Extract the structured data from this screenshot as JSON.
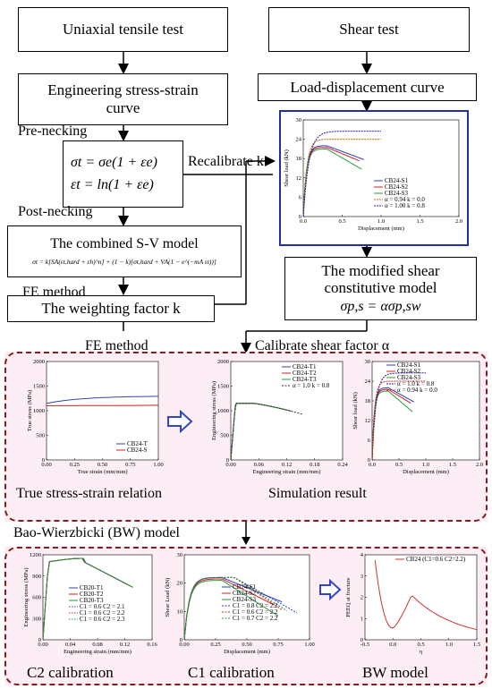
{
  "boxes": {
    "uniaxial": "Uniaxial tensile test",
    "shear": "Shear test",
    "eng_curve_1": "Engineering stress-strain",
    "eng_curve_2": "curve",
    "load_disp": "Load-displacement curve",
    "combined_model": "The combined S-V model",
    "weighting": "The weighting factor k",
    "mod_shear_1": "The modified shear",
    "mod_shear_2": "constitutive model"
  },
  "labels": {
    "pre_necking": "Pre-necking",
    "post_necking": "Post-necking",
    "fe_method_1": "FE method",
    "fe_method_2": "FE method",
    "recalibrate": "Recalibrate k",
    "calibrate_alpha": "Calibrate shear factor α",
    "true_ss": "True stress-strain relation",
    "sim_result": "Simulation result",
    "bw_model_title": "Bao-Wierzbicki (BW) model",
    "c2_calib": "C2 calibration",
    "c1_calib": "C1 calibration",
    "bw_model": "BW model"
  },
  "equations": {
    "sigma_t": "σt = σe(1 + εe)",
    "eps_t": "εt = ln(1 + εe)",
    "sv_model": "σt = k[SA(εt,hard + εh)^n] + (1 − k)[σt,hard + VA(1 − e^(−mA εt))]",
    "shear_model": "σp,s = ασp,sw"
  },
  "charts": {
    "shear_top": {
      "xlabel": "Displacement (mm)",
      "ylabel": "Shear load (kN)",
      "xticks": [
        "0.0",
        "0.5",
        "1.0",
        "1.5",
        "2.0"
      ],
      "yticks": [
        "0",
        "6",
        "12",
        "18",
        "24",
        "30"
      ],
      "legend": [
        "CB24-S1",
        "CB24-S2",
        "CB24-S3",
        "α = 0.94  k = 0.0",
        "α = 1.00  k = 0.8"
      ]
    },
    "true_ss": {
      "xlabel": "True strain (mm/mm)",
      "ylabel": "True stress (MPa)",
      "xticks": [
        "0.00",
        "0.25",
        "0.50",
        "0.75",
        "1.00"
      ],
      "yticks": [
        "0",
        "500",
        "1000",
        "1500",
        "2000"
      ],
      "legend": [
        "CB24-T",
        "CB24-S"
      ]
    },
    "sim_eng": {
      "xlabel": "Engineering strain (mm/mm)",
      "ylabel": "Engineering stress (MPa)",
      "xticks": [
        "0.00",
        "0.06",
        "0.12",
        "0.18",
        "0.24"
      ],
      "yticks": [
        "0",
        "500",
        "1000",
        "1500",
        "2000"
      ],
      "legend": [
        "CB24-T1",
        "CB24-T2",
        "CB24-T3",
        "α = 1.0  k = 0.8"
      ]
    },
    "sim_shear": {
      "xlabel": "Displacement (mm)",
      "ylabel": "Shear load (kN)",
      "xticks": [
        "0.0",
        "0.5",
        "1.0",
        "1.5",
        "2.0"
      ],
      "yticks": [
        "0",
        "6",
        "12",
        "18",
        "24",
        "30"
      ],
      "legend": [
        "CB24-S1",
        "CB24-S2",
        "CB24-S3",
        "α = 1.0  k = 0.8",
        "α = 0.94  k = 0.0"
      ]
    },
    "c2": {
      "xlabel": "Engineering strain (mm/mm)",
      "ylabel": "Engineering stress (MPa)",
      "xticks": [
        "0.00",
        "0.04",
        "0.08",
        "0.12",
        "0.16"
      ],
      "yticks": [
        "0",
        "300",
        "600",
        "900",
        "1200"
      ],
      "legend": [
        "CB20-T1",
        "CB20-T2",
        "CB20-T3",
        "C1 = 0.6  C2 = 2.1",
        "C1 = 0.6  C2 = 2.2",
        "C1 = 0.6  C2 = 2.3"
      ]
    },
    "c1": {
      "xlabel": "Displacement (mm)",
      "ylabel": "Shear Load (kN)",
      "xticks": [
        "0.00",
        "0.25",
        "0.50",
        "0.75",
        "1.00"
      ],
      "yticks": [
        "0",
        "10",
        "20",
        "30"
      ],
      "legend": [
        "CB24-S1",
        "CB24-S2",
        "CB24-S3",
        "C1 = 0.8  C2 = 2.2",
        "C1 = 0.6  C2 = 2.2",
        "C1 = 0.7  C2 = 2.2"
      ]
    },
    "bw": {
      "xlabel": "η",
      "ylabel": "PEEQ at fracture",
      "xticks": [
        "-0.5",
        "0.0",
        "0.5",
        "1.0",
        "1.5"
      ],
      "yticks": [
        "0",
        "1",
        "2",
        "3",
        "4"
      ],
      "legend": [
        "CB24 (C1=0.6  C2=2.2)"
      ]
    }
  },
  "colors": {
    "blue_frame": "#1f2fa8",
    "dashed_frame": "#8b1a1a",
    "pink_bg": "#fdeef6",
    "arrow_blue": "#3344cc"
  }
}
